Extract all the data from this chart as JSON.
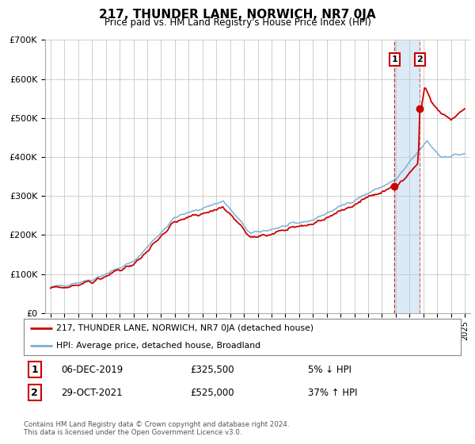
{
  "title": "217, THUNDER LANE, NORWICH, NR7 0JA",
  "subtitle": "Price paid vs. HM Land Registry's House Price Index (HPI)",
  "legend_line1": "217, THUNDER LANE, NORWICH, NR7 0JA (detached house)",
  "legend_line2": "HPI: Average price, detached house, Broadland",
  "sale1_date": "06-DEC-2019",
  "sale1_price": 325500,
  "sale1_pct": "5% ↓ HPI",
  "sale2_date": "29-OCT-2021",
  "sale2_price": 525000,
  "sale2_pct": "37% ↑ HPI",
  "footer": "Contains HM Land Registry data © Crown copyright and database right 2024.\nThis data is licensed under the Open Government Licence v3.0.",
  "hpi_color": "#7ab0d8",
  "price_color": "#cc0000",
  "highlight_color": "#daeaf6",
  "marker_color": "#cc0000",
  "grid_color": "#c8c8c8",
  "background_color": "#ffffff",
  "ylim": [
    0,
    700000
  ],
  "yticks": [
    0,
    100000,
    200000,
    300000,
    400000,
    500000,
    600000,
    700000
  ],
  "ytick_labels": [
    "£0",
    "£100K",
    "£200K",
    "£300K",
    "£400K",
    "£500K",
    "£600K",
    "£700K"
  ],
  "sale1_year": 2019.92,
  "sale2_year": 2021.79
}
